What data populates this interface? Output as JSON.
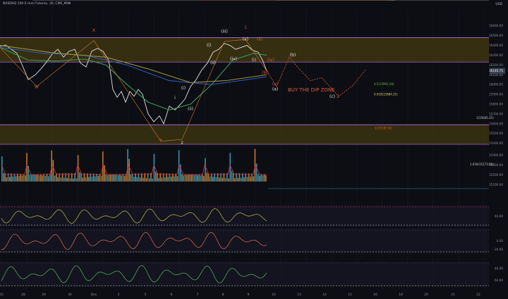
{
  "header": {
    "symbol": "NASDAQ 100 E-mini Futures, 30, CME_MINI",
    "currency": "USD"
  },
  "chart_data": {
    "type": "line",
    "title": "NASDAQ 100 E-mini Futures, 30, CME_MINI",
    "price_axis": [
      "16600.00",
      "16500.00",
      "16400.00",
      "16300.00",
      "16200.00",
      "16100.00",
      "16000.00",
      "15900.00",
      "15800.00",
      "15700.00",
      "15600.00",
      "15500.00",
      "15400.00"
    ],
    "volume_axis": [
      "15400.00",
      "15300.00",
      "15200.00",
      "15100.00"
    ],
    "osc_axis_1": [
      "40.00"
    ],
    "osc_axis_2": [
      "0.00",
      "-20.00"
    ],
    "osc_axis_3": [
      "40.00",
      "-50.00"
    ],
    "x_ticks": [
      "25",
      "28",
      "29",
      "30",
      "Dec",
      "2",
      "5",
      "6",
      "7",
      "8",
      "9",
      "10",
      "13",
      "14",
      "15",
      "16",
      "19",
      "20",
      "21",
      "22"
    ],
    "ylim": [
      15340,
      16720
    ],
    "last_price": "16140.75",
    "zones": [
      {
        "name": "upper_supply",
        "from": 16230,
        "to": 16480
      },
      {
        "name": "lower_demand",
        "from": 15390,
        "to": 15590
      }
    ],
    "series": [
      {
        "type": "price",
        "color": "#e0e0e0",
        "x": [
          0,
          8,
          16,
          24,
          32,
          40,
          50,
          58,
          66,
          74,
          82,
          90,
          98,
          106,
          114,
          122,
          130,
          138,
          146,
          154,
          160,
          166,
          172,
          178,
          184,
          190,
          196,
          202,
          210,
          218,
          226,
          232,
          240,
          248,
          256,
          262,
          270,
          278,
          286,
          294,
          302,
          310,
          318,
          326,
          334,
          342,
          350,
          358,
          366,
          372,
          378
        ],
        "y": [
          16390,
          16405,
          16360,
          16320,
          16190,
          16050,
          16100,
          16160,
          16230,
          16310,
          16360,
          16280,
          16340,
          16360,
          16220,
          16180,
          16340,
          16370,
          16340,
          16250,
          15950,
          15870,
          15930,
          15820,
          15930,
          15880,
          15950,
          15900,
          15700,
          15620,
          15680,
          15600,
          15780,
          15740,
          15800,
          15850,
          15980,
          16050,
          16150,
          16220,
          16330,
          16360,
          16420,
          16400,
          16360,
          16380,
          16400,
          16350,
          16330,
          16250,
          16140
        ]
      },
      {
        "type": "ema_green",
        "color": "#3c9a5a",
        "x": [
          0,
          40,
          80,
          120,
          150,
          180,
          210,
          240,
          270,
          300,
          330,
          360,
          378
        ],
        "y": [
          16380,
          16250,
          16240,
          16260,
          16200,
          16000,
          15820,
          15740,
          15800,
          16000,
          16250,
          16320,
          16300
        ]
      },
      {
        "type": "ema_blue",
        "color": "#2f57b8",
        "x": [
          0,
          60,
          120,
          180,
          240,
          300,
          340,
          378
        ],
        "y": [
          16380,
          16320,
          16300,
          16200,
          16040,
          16000,
          16040,
          16080
        ]
      },
      {
        "type": "ema_olive",
        "color": "#9a8f3a",
        "x": [
          0,
          80,
          150,
          210,
          270,
          320,
          378
        ],
        "y": [
          16400,
          16320,
          16280,
          16160,
          16020,
          16040,
          16100
        ]
      }
    ],
    "elliott_wave_labels": [
      {
        "text": "X",
        "x": 133,
        "y": 16540,
        "color": "#e05a3a"
      },
      {
        "text": "W",
        "x": 52,
        "y": 15960,
        "color": "#e05a3a"
      },
      {
        "text": "Y",
        "x": 228,
        "y": 15415,
        "color": "#e05a3a"
      },
      {
        "text": "1",
        "x": 348,
        "y": 16570,
        "color": "#e05a3a"
      },
      {
        "text": "2",
        "x": 479,
        "y": 15865,
        "color": "#e05a3a"
      },
      {
        "text": "(iii)",
        "x": 318,
        "y": 16530,
        "color": "#e0e0e0"
      },
      {
        "text": "(i)",
        "x": 296,
        "y": 16390,
        "color": "#e0e0e0"
      },
      {
        "text": "(ii)",
        "x": 302,
        "y": 16210,
        "color": "#e0e0e0"
      },
      {
        "text": "(v)",
        "x": 348,
        "y": 16450,
        "color": "#e0e0e0"
      },
      {
        "text": "(iv)",
        "x": 331,
        "y": 16250,
        "color": "#e0e0e0"
      },
      {
        "text": "(ii)",
        "x": 368,
        "y": 16450,
        "color": "#e05a3a"
      },
      {
        "text": "(i)",
        "x": 360,
        "y": 16240,
        "color": "#e0e0e0"
      },
      {
        "text": "(iv)",
        "x": 384,
        "y": 16240,
        "color": "#e05a3a"
      },
      {
        "text": "(iii)",
        "x": 376,
        "y": 16110,
        "color": "#e05a3a"
      },
      {
        "text": "(v)",
        "x": 390,
        "y": 15990,
        "color": "#e05a3a"
      },
      {
        "text": "(a)",
        "x": 390,
        "y": 15940,
        "color": "#e0e0e0"
      },
      {
        "text": "(b)",
        "x": 415,
        "y": 16290,
        "color": "#e0e0e0"
      },
      {
        "text": "(c)",
        "x": 471,
        "y": 15865,
        "color": "#e0e0e0"
      },
      {
        "text": "i",
        "x": 248,
        "y": 15850,
        "color": "#e0e0e0"
      },
      {
        "text": "(i)",
        "x": 260,
        "y": 15950,
        "color": "#e0e0e0"
      },
      {
        "text": "(ii)",
        "x": 270,
        "y": 15740,
        "color": "#e0e0e0"
      },
      {
        "text": "ii",
        "x": 258,
        "y": 15390,
        "color": "#e0e0e0"
      }
    ],
    "annotations": [
      {
        "text": "BUY THE DIP ZONE",
        "x": 408,
        "y": 15930,
        "color": "#e05a3a"
      },
      {
        "text": "0.5(15991.00)",
        "x": 530,
        "y": 15995,
        "color": "#6cbf4a"
      },
      {
        "text": "0.618(15884.25)",
        "x": 530,
        "y": 15890,
        "color": "#e0d060"
      },
      {
        "text": "1(15645.25)",
        "x": 675,
        "y": 15650,
        "color": "#d0d0d0"
      },
      {
        "text": "1(15538.50)",
        "x": 531,
        "y": 15545,
        "color": "#e05a3a"
      },
      {
        "text": "1.618(15173.00)",
        "x": 666,
        "y": 15173,
        "color": "#d0d0d0"
      }
    ],
    "projection": {
      "x": [
        378,
        392,
        410,
        424,
        440,
        456,
        480,
        500,
        518
      ],
      "y": [
        16140,
        15980,
        16280,
        16160,
        16040,
        16070,
        15880,
        15990,
        16150
      ]
    }
  }
}
